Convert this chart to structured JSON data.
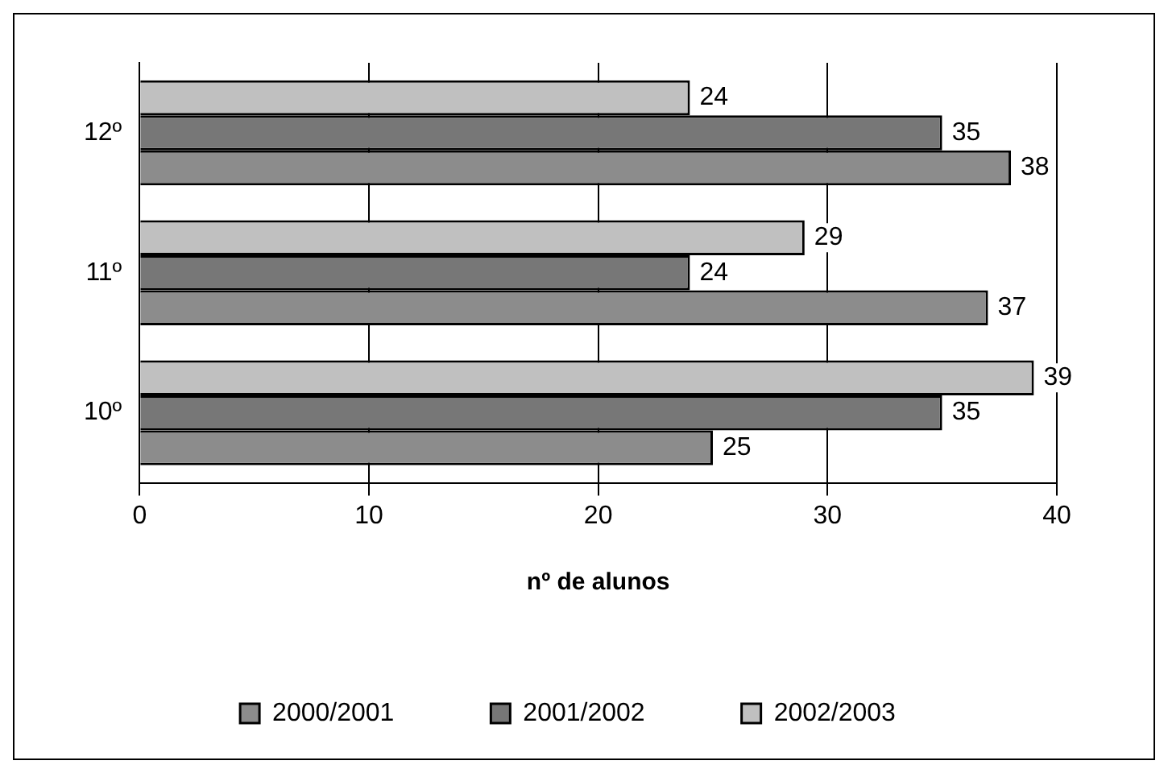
{
  "chart_data": {
    "type": "bar",
    "orientation": "horizontal",
    "xlabel": "nº de alunos",
    "categories": [
      "12º",
      "11º",
      "10º"
    ],
    "series": [
      {
        "name": "2000/2001",
        "color": "#8c8c8c",
        "values": [
          38,
          37,
          25
        ]
      },
      {
        "name": "2001/2002",
        "color": "#777777",
        "values": [
          35,
          24,
          35
        ]
      },
      {
        "name": "2002/2003",
        "color": "#c0c0c0",
        "values": [
          24,
          29,
          39
        ]
      }
    ],
    "xlim": [
      0,
      40
    ],
    "xticks": [
      0,
      10,
      20,
      30,
      40
    ],
    "grid": "x",
    "legend": "bottom",
    "data_labels": true
  }
}
